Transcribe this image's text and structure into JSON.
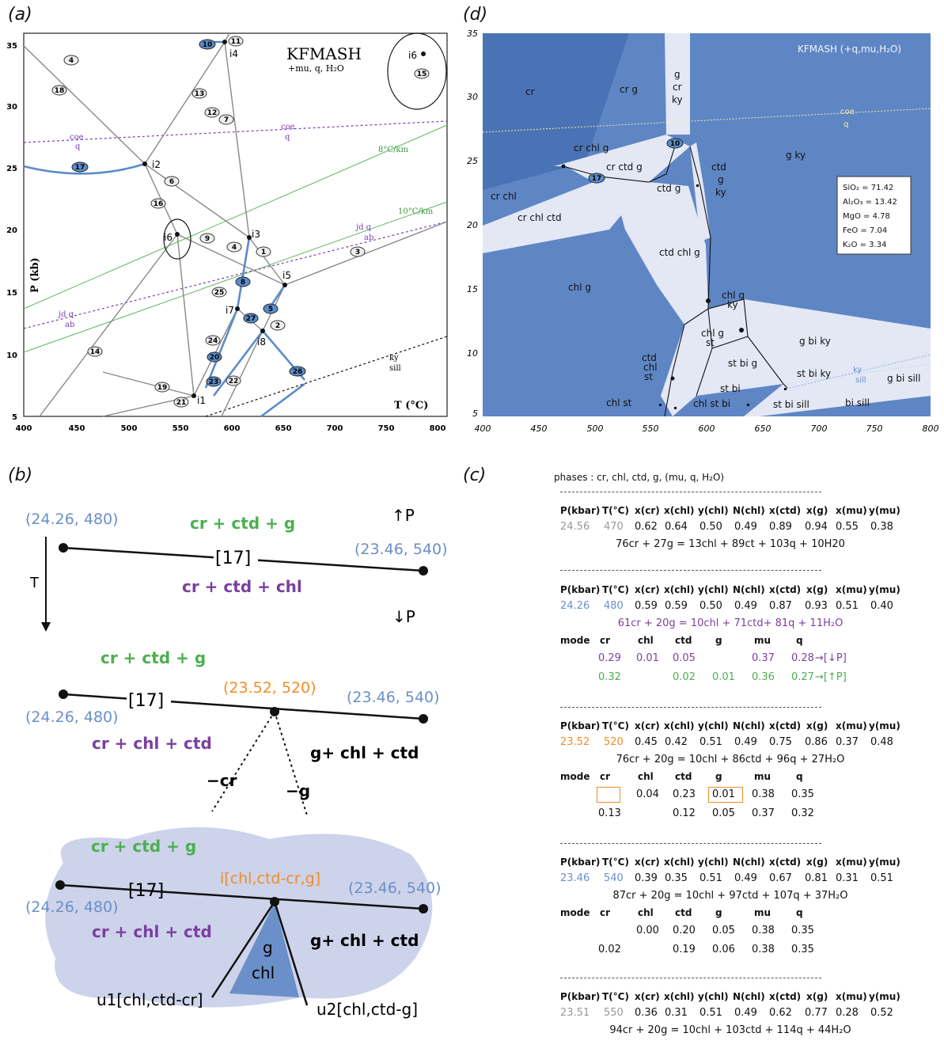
{
  "labels": {
    "a": "(a)",
    "b": "(b)",
    "c": "(c)",
    "d": "(d)"
  },
  "panel_a": {
    "title": "KFMASH",
    "subtitle": "+mu, q, H₂O",
    "xaxis_label": "T (°C)",
    "yaxis_label": "P (kb)",
    "xticks": [
      "400",
      "450",
      "500",
      "550",
      "600",
      "650",
      "700",
      "750",
      "800"
    ],
    "yticks": [
      "35",
      "30",
      "25",
      "20",
      "15",
      "10",
      "5"
    ],
    "gradients": [
      "8°C/km",
      "10°C/km"
    ],
    "coe_q": [
      "coe",
      "q"
    ],
    "jdq_ab": [
      "jd q",
      "ab"
    ],
    "ky_sill": [
      "ky",
      "sill"
    ],
    "invariants": [
      "i1",
      "i2",
      "i3",
      "i4",
      "i5",
      "i6",
      "i7",
      "i8"
    ],
    "numbers": [
      "1",
      "2",
      "3",
      "4",
      "5",
      "6",
      "7",
      "8",
      "9",
      "10",
      "11",
      "12",
      "13",
      "14",
      "15",
      "16",
      "17",
      "18",
      "19",
      "20",
      "21",
      "22",
      "23",
      "24",
      "25",
      "26",
      "27"
    ]
  },
  "panel_b": {
    "up_p": "↑P",
    "down_p": "↓P",
    "t_label": "T",
    "pt1": "(24.26, 480)",
    "pt2": "(23.46, 540)",
    "pt_mid": "(23.52, 520)",
    "num": "[17]",
    "asm_crctdg": "cr + ctd + g",
    "asm_crctdchl": "cr + ctd + chl",
    "asm_crchlctd": "cr + chl + ctd",
    "asm_gchlctd": "g+ chl + ctd",
    "minus_cr": "−cr",
    "minus_g": "−g",
    "inv_label": "i[chl,ctd-cr,g]",
    "field": "g chl",
    "u1": "u1[chl,ctd-cr]",
    "u2": "u2[chl,ctd-g]"
  },
  "panel_c": {
    "phases": "phases : cr, chl, ctd, g, (mu, q, H₂O)",
    "header": [
      "P(kbar)",
      "T(°C)",
      "x(cr)",
      "x(chl)",
      "y(chl)",
      "N(chl)",
      "x(ctd)",
      "x(g)",
      "x(mu)",
      "y(mu)"
    ],
    "rows": [
      [
        "24.56",
        "470",
        "0.62",
        "0.64",
        "0.50",
        "0.49",
        "0.89",
        "0.94",
        "0.55",
        "0.38"
      ],
      [
        "24.26",
        "480",
        "0.59",
        "0.59",
        "0.50",
        "0.49",
        "0.87",
        "0.93",
        "0.51",
        "0.40"
      ],
      [
        "23.52",
        "520",
        "0.45",
        "0.42",
        "0.51",
        "0.49",
        "0.75",
        "0.86",
        "0.37",
        "0.48"
      ],
      [
        "23.46",
        "540",
        "0.39",
        "0.35",
        "0.51",
        "0.49",
        "0.67",
        "0.81",
        "0.31",
        "0.51"
      ],
      [
        "23.51",
        "550",
        "0.36",
        "0.31",
        "0.51",
        "0.49",
        "0.62",
        "0.77",
        "0.28",
        "0.52"
      ]
    ],
    "reactions": [
      "76cr + 27g = 13chl + 89ct + 103q + 10H20",
      "61cr + 20g = 10chl + 71ctd+ 81q + 11H₂O",
      "76cr + 20g = 10chl + 86ctd + 96q + 27H₂O",
      "87cr + 20g = 10chl + 97ctd + 107q + 37H₂O",
      "94cr + 20g = 10chl + 103ctd + 114q + 44H₂O"
    ],
    "mode_header": [
      "mode",
      "cr",
      "chl",
      "ctd",
      "g",
      "mu",
      "q"
    ],
    "mode2": [
      [
        "0.29",
        "0.01",
        "0.05",
        "",
        "0.37",
        "0.28",
        "→[↓P]"
      ],
      [
        "0.32",
        "",
        "0.02",
        "0.01",
        "0.36",
        "0.27",
        "→[↑P]"
      ]
    ],
    "mode3": [
      [
        "",
        "0.04",
        "0.23",
        "0.01",
        "0.38",
        "0.35"
      ],
      [
        "0.13",
        "",
        "0.12",
        "0.05",
        "0.37",
        "0.32"
      ]
    ],
    "mode4": [
      [
        "",
        "0.00",
        "0.20",
        "0.05",
        "0.38",
        "0.35"
      ],
      [
        "0.02",
        "",
        "0.19",
        "0.06",
        "0.38",
        "0.35"
      ]
    ]
  },
  "panel_d": {
    "title": "KFMASH (+q,mu,H₂O)",
    "xticks": [
      "400",
      "450",
      "500",
      "550",
      "600",
      "650",
      "700",
      "750",
      "800"
    ],
    "yticks": [
      "35",
      "30",
      "25",
      "20",
      "15",
      "10",
      "5"
    ],
    "composition": [
      "SiO₂ = 71.42",
      "Al₂O₃ = 13.42",
      "MgO = 4.78",
      "FeO = 7.04",
      "K₂O = 3.34"
    ],
    "fields": {
      "cr": "cr",
      "crg": "cr g",
      "gcrky": [
        "g",
        "cr",
        "ky"
      ],
      "crchlg": "cr chl g",
      "crctdg": "cr ctd g",
      "crchl": "cr chl",
      "crchlctd": "cr chl ctd",
      "ctdg": "ctd g",
      "ctdgky": [
        "ctd",
        "g",
        "ky"
      ],
      "gky": "g ky",
      "ctdchlg": "ctd chl g",
      "chlg": "chl g",
      "chlgky": [
        "chl g",
        "ky"
      ],
      "chlgst": [
        "chl g",
        "st"
      ],
      "gbiky": "g bi ky",
      "stbig": "st bi g",
      "ctdchlst": [
        "ctd",
        "chl",
        "st"
      ],
      "stbiky": "st bi ky",
      "gbisill": "g bi sill",
      "stbi": "st bi",
      "chlst": "chl st",
      "chlstbi": "chl st bi",
      "stbisill": "st bi sill",
      "bisill": "bi sill",
      "coe": "coe",
      "q": "q",
      "ky": "ky",
      "sill": "sill"
    },
    "circ10": "10",
    "circ17": "17"
  }
}
